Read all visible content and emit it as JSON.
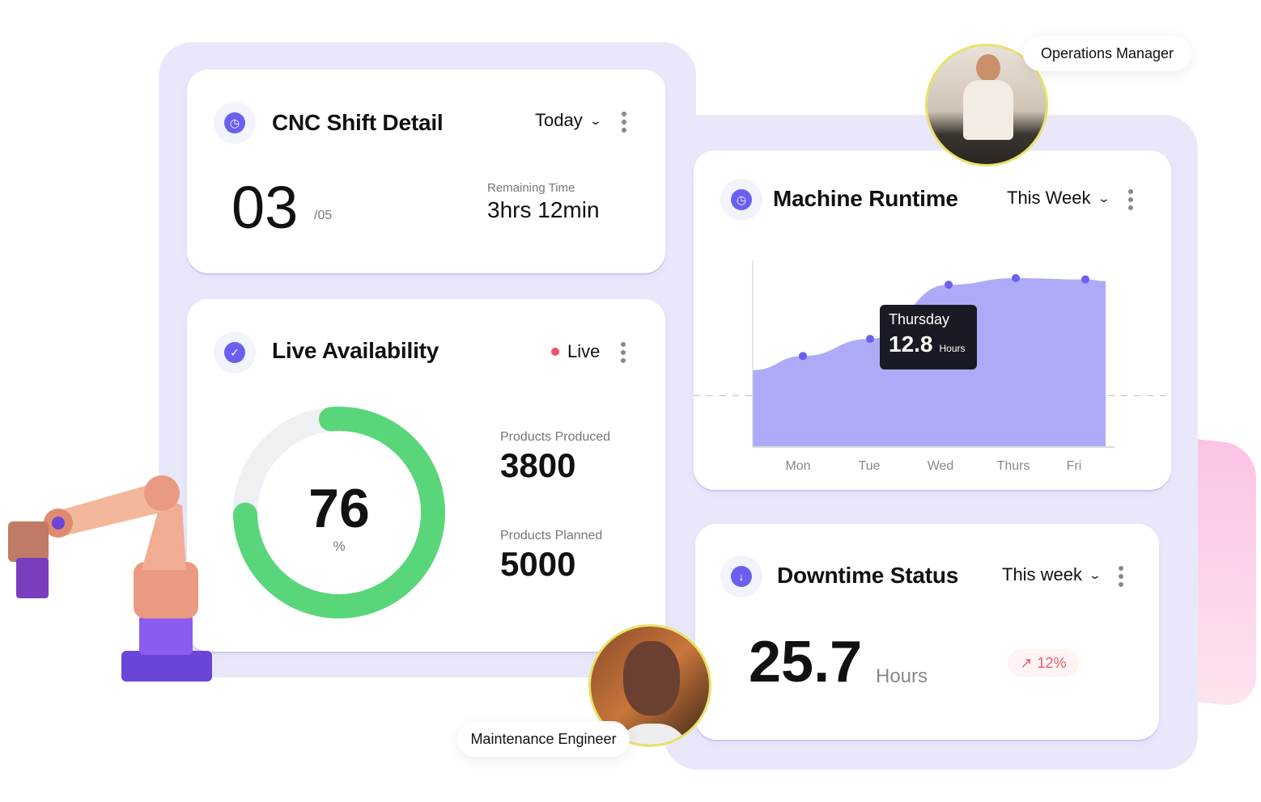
{
  "cnc_shift": {
    "title": "CNC Shift Detail",
    "period": "Today",
    "shift_current": "03",
    "shift_total": "/05",
    "remaining_label": "Remaining Time",
    "remaining_value": "3hrs 12min",
    "icon": "clock-icon"
  },
  "availability": {
    "title": "Live Availability",
    "status": "Live",
    "status_color": "#f0506e",
    "percent_value": "76",
    "percent_unit": "%",
    "percent": 76,
    "produced_label": "Products Produced",
    "produced_value": "3800",
    "planned_label": "Products Planned",
    "planned_value": "5000",
    "ring_color": "#5ad67a",
    "icon": "check-circle-icon"
  },
  "runtime": {
    "title": "Machine Runtime",
    "period": "This Week",
    "icon": "clock-icon",
    "tooltip": {
      "day": "Thursday",
      "value": "12.8",
      "unit": "Hours"
    }
  },
  "chart_data": {
    "type": "area",
    "categories": [
      "Mon",
      "Tue",
      "Wed",
      "Thurs",
      "Fri"
    ],
    "values": [
      6.9,
      8.2,
      12.3,
      12.8,
      12.7
    ],
    "reference_line": 3.9,
    "color": "#adabf8",
    "point_color": "#6a5ff0",
    "grid": false,
    "xlabel": "",
    "ylabel": ""
  },
  "downtime": {
    "title": "Downtime Status",
    "period": "This week",
    "value": "25.7",
    "unit": "Hours",
    "change": "12%",
    "change_icon": "arrow-up-right-icon",
    "change_color": "#e0606e",
    "icon": "arrow-down-circle-icon"
  },
  "people": {
    "top": "Operations Manager",
    "bottom": "Maintenance Engineer"
  }
}
